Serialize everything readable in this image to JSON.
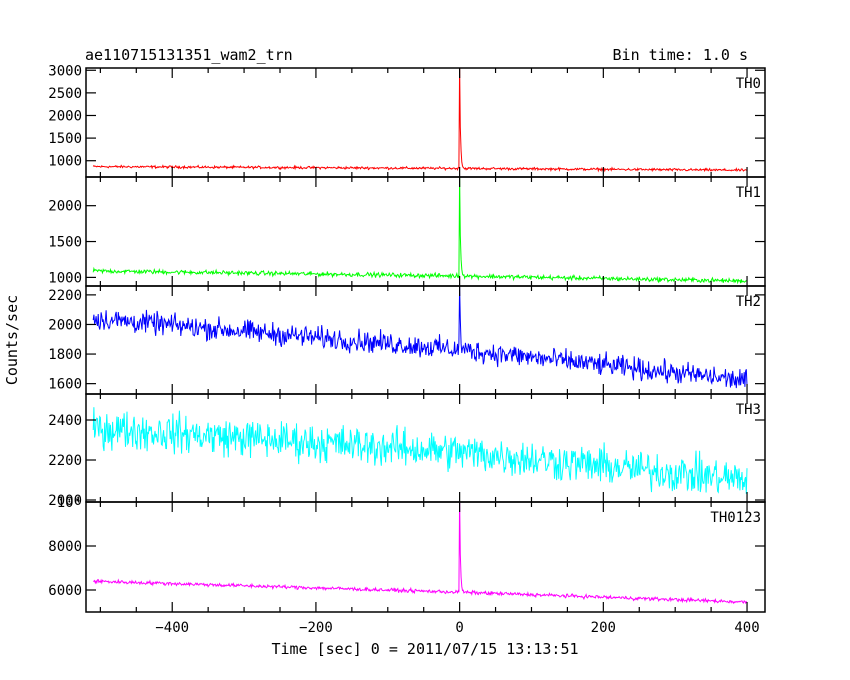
{
  "header": {
    "left_title": "ae110715131351_wam2_trn",
    "right_title": "Bin time: 1.0 s"
  },
  "ylabel": "Counts/sec",
  "xlabel": "Time [sec] 0 = 2011/07/15 13:13:51",
  "chart_data": [
    {
      "type": "line",
      "name": "TH0",
      "color": "#ff0000",
      "xlim": [
        -520,
        425
      ],
      "ylim": [
        640,
        3050
      ],
      "yticks": [
        1000,
        1500,
        2000,
        2500,
        3000
      ],
      "ytick_labels": [
        "1000",
        "1500",
        "2000",
        "2500",
        "3000"
      ],
      "baseline": [
        [
          -510,
          870
        ],
        [
          0,
          830
        ],
        [
          400,
          790
        ]
      ],
      "noise": 40,
      "burst": {
        "x": 0,
        "peak": 3150
      }
    },
    {
      "type": "line",
      "name": "TH1",
      "color": "#00ff00",
      "xlim": [
        -520,
        425
      ],
      "ylim": [
        880,
        2400
      ],
      "yticks": [
        1000,
        1500,
        2000
      ],
      "ytick_labels": [
        "1000",
        "1500",
        "2000"
      ],
      "baseline": [
        [
          -510,
          1090
        ],
        [
          0,
          1020
        ],
        [
          400,
          950
        ]
      ],
      "noise": 45,
      "burst": {
        "x": 0,
        "peak": 2430
      }
    },
    {
      "type": "line",
      "name": "TH2",
      "color": "#0000ff",
      "xlim": [
        -520,
        425
      ],
      "ylim": [
        1530,
        2260
      ],
      "yticks": [
        1600,
        1800,
        2000,
        2200
      ],
      "ytick_labels": [
        "1600",
        "1800",
        "2000",
        "2200"
      ],
      "baseline": [
        [
          -510,
          2040
        ],
        [
          0,
          1830
        ],
        [
          400,
          1620
        ]
      ],
      "noise": 110,
      "burst": {
        "x": 0,
        "peak": 2260
      }
    },
    {
      "type": "line",
      "name": "TH3",
      "color": "#00ffff",
      "xlim": [
        -520,
        425
      ],
      "ylim": [
        1990,
        2530
      ],
      "yticks": [
        2000,
        2200,
        2400
      ],
      "ytick_labels": [
        "2000",
        "2200",
        "2400"
      ],
      "baseline": [
        [
          -510,
          2360
        ],
        [
          0,
          2240
        ],
        [
          400,
          2100
        ]
      ],
      "noise": 140,
      "burst": null
    },
    {
      "type": "line",
      "name": "TH0123",
      "color": "#ff00ff",
      "xlim": [
        -520,
        425
      ],
      "ylim": [
        5000,
        10000
      ],
      "yticks": [
        6000,
        8000,
        10000
      ],
      "ytick_labels": [
        "6000",
        "8000",
        "10⁴"
      ],
      "baseline": [
        [
          -510,
          6400
        ],
        [
          0,
          5900
        ],
        [
          400,
          5450
        ]
      ],
      "noise": 120,
      "burst": {
        "x": 0,
        "peak": 10200
      }
    }
  ],
  "xticks": [
    -400,
    -200,
    0,
    200,
    400
  ],
  "xtick_labels": [
    "−400",
    "−200",
    "0",
    "200",
    "400"
  ],
  "x_minor_step": 50
}
